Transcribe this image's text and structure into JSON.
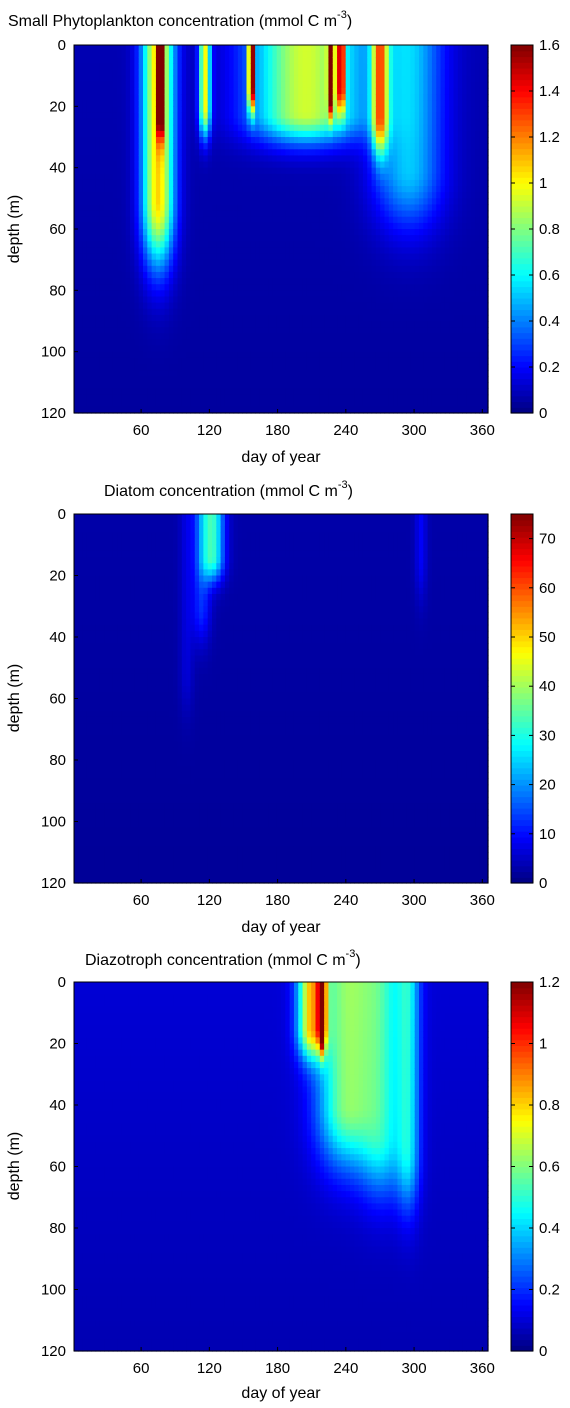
{
  "chart_data": [
    {
      "type": "heatmap",
      "title": "Small Phytoplankton concentration (mmol C m",
      "title_superscript": "-3",
      "title_close": ")",
      "xlabel": "day of year",
      "ylabel": "depth (m)",
      "xlim": [
        1,
        365
      ],
      "ylim": [
        0,
        120
      ],
      "y_direction": "reverse",
      "xticks": [
        60,
        120,
        180,
        240,
        300,
        360
      ],
      "yticks": [
        0,
        20,
        40,
        60,
        80,
        100,
        120
      ],
      "colormap": "jet",
      "clim": [
        0,
        1.6
      ],
      "colorbar_ticks": [
        "0",
        "0.2",
        "0.4",
        "0.6",
        "0.8",
        "1",
        "1.2",
        "1.4",
        "1.6"
      ],
      "colorbar_values": [
        0,
        0.2,
        0.4,
        0.6,
        0.8,
        1,
        1.2,
        1.4,
        1.6
      ],
      "background_value": 0.08,
      "features": [
        {
          "day": 75,
          "width": 14,
          "peak": 1.0,
          "depth": 50,
          "depth_scale": 22
        },
        {
          "day": 77,
          "width": 2.5,
          "peak": 1.5,
          "depth": 20,
          "depth_scale": 10
        },
        {
          "day": 116,
          "width": 5,
          "peak": 0.9,
          "depth": 20,
          "depth_scale": 10
        },
        {
          "day": 157,
          "width": 2.5,
          "peak": 1.55,
          "depth": 14,
          "depth_scale": 8
        },
        {
          "day": 205,
          "width": 48,
          "peak": 0.85,
          "depth": 22,
          "depth_scale": 10
        },
        {
          "day": 227,
          "width": 2.5,
          "peak": 1.5,
          "depth": 14,
          "depth_scale": 8
        },
        {
          "day": 236,
          "width": 2.5,
          "peak": 1.3,
          "depth": 14,
          "depth_scale": 8
        },
        {
          "day": 270,
          "width": 7,
          "peak": 0.9,
          "depth": 24,
          "depth_scale": 12
        },
        {
          "day": 295,
          "width": 30,
          "peak": 0.45,
          "depth": 40,
          "depth_scale": 20
        }
      ]
    },
    {
      "type": "heatmap",
      "title": "Diatom concentration (mmol C m",
      "title_superscript": "-3",
      "title_close": ")",
      "xlabel": "day of year",
      "ylabel": "depth (m)",
      "xlim": [
        1,
        365
      ],
      "ylim": [
        0,
        120
      ],
      "y_direction": "reverse",
      "xticks": [
        60,
        120,
        180,
        240,
        300,
        360
      ],
      "yticks": [
        0,
        20,
        40,
        60,
        80,
        100,
        120
      ],
      "colormap": "jet",
      "clim": [
        0,
        75
      ],
      "colorbar_ticks": [
        "0",
        "10",
        "20",
        "30",
        "40",
        "50",
        "60",
        "70"
      ],
      "colorbar_values": [
        0,
        10,
        20,
        30,
        40,
        50,
        60,
        70
      ],
      "background_value": 3,
      "features": [
        {
          "day": 123,
          "width": 10,
          "peak": 28,
          "depth": 14,
          "depth_scale": 8
        },
        {
          "day": 113,
          "width": 8,
          "peak": 10,
          "depth": 30,
          "depth_scale": 12
        },
        {
          "day": 100,
          "width": 6,
          "peak": 4,
          "depth": 50,
          "depth_scale": 15
        },
        {
          "day": 306,
          "width": 5,
          "peak": 6,
          "depth": 14,
          "depth_scale": 14
        }
      ]
    },
    {
      "type": "heatmap",
      "title": "Diazotroph concentration (mmol C m",
      "title_superscript": "-3",
      "title_close": ")",
      "xlabel": "day of year",
      "ylabel": "depth (m)",
      "xlim": [
        1,
        365
      ],
      "ylim": [
        0,
        120
      ],
      "y_direction": "reverse",
      "xticks": [
        60,
        120,
        180,
        240,
        300,
        360
      ],
      "yticks": [
        0,
        20,
        40,
        60,
        80,
        100,
        120
      ],
      "colormap": "jet",
      "clim": [
        0,
        1.2
      ],
      "colorbar_ticks": [
        "0",
        "0.2",
        "0.4",
        "0.6",
        "0.8",
        "1",
        "1.2"
      ],
      "colorbar_values": [
        0,
        0.2,
        0.4,
        0.6,
        0.8,
        1,
        1.2
      ],
      "background_value": 0.1,
      "features": [
        {
          "day": 210,
          "width": 12,
          "peak": 0.65,
          "depth": 15,
          "depth_scale": 10
        },
        {
          "day": 219,
          "width": 3,
          "peak": 1.15,
          "depth": 14,
          "depth_scale": 8
        },
        {
          "day": 240,
          "width": 25,
          "peak": 0.5,
          "depth": 40,
          "depth_scale": 20
        },
        {
          "day": 272,
          "width": 20,
          "peak": 0.35,
          "depth": 50,
          "depth_scale": 20
        },
        {
          "day": 295,
          "width": 10,
          "peak": 0.3,
          "depth": 55,
          "depth_scale": 20
        }
      ]
    }
  ]
}
